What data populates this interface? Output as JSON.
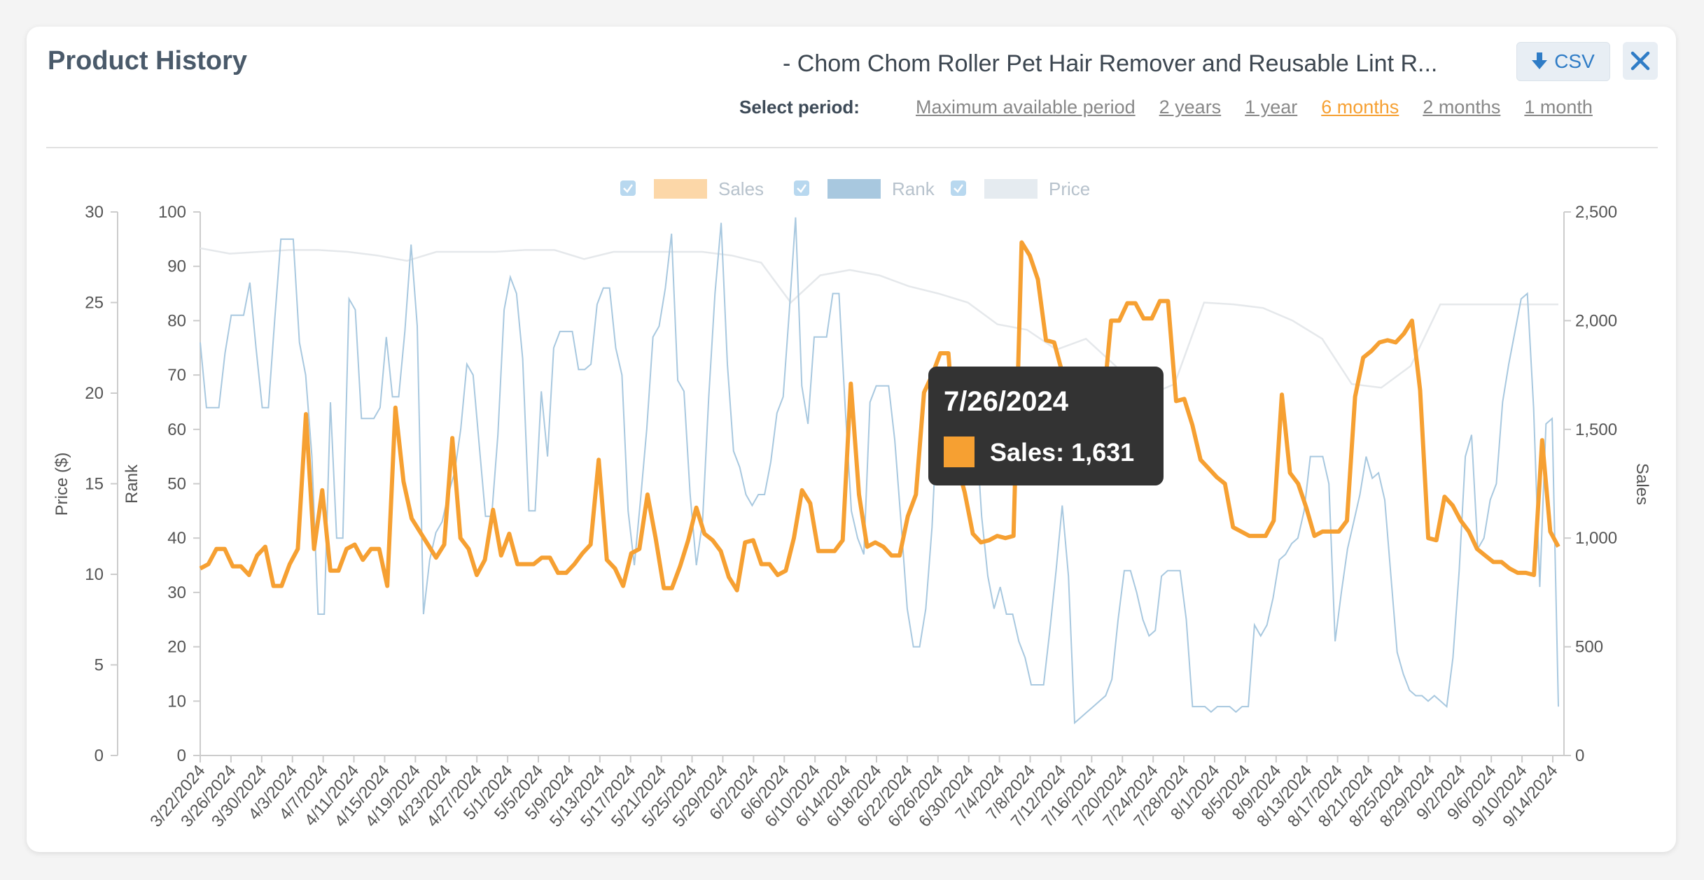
{
  "header": {
    "title": "Product History",
    "product_name": "- Chom Chom Roller Pet Hair Remover and Reusable Lint R...",
    "csv_label": "CSV",
    "close_icon": "close-icon",
    "download_icon": "download-arrow-icon"
  },
  "period": {
    "label": "Select period:",
    "options": [
      "Maximum available period",
      "2 years",
      "1 year",
      "6 months",
      "2 months",
      "1 month"
    ],
    "active": "6 months"
  },
  "colors": {
    "sales": "#f6a032",
    "rank": "#a8c8df",
    "price": "#e5e8eb",
    "accent": "#2f7cc6"
  },
  "tooltip": {
    "date": "7/26/2024",
    "label": "Sales: 1,631"
  },
  "chart_data": {
    "type": "line",
    "legend": [
      "Sales",
      "Rank",
      "Price"
    ],
    "legend_position": "top-center",
    "grid": false,
    "x_labels": [
      "3/22/2024",
      "3/26/2024",
      "3/30/2024",
      "4/3/2024",
      "4/7/2024",
      "4/11/2024",
      "4/15/2024",
      "4/19/2024",
      "4/23/2024",
      "4/27/2024",
      "5/1/2024",
      "5/5/2024",
      "5/9/2024",
      "5/13/2024",
      "5/17/2024",
      "5/21/2024",
      "5/25/2024",
      "5/29/2024",
      "6/2/2024",
      "6/6/2024",
      "6/10/2024",
      "6/14/2024",
      "6/18/2024",
      "6/22/2024",
      "6/26/2024",
      "6/30/2024",
      "7/4/2024",
      "7/8/2024",
      "7/12/2024",
      "7/16/2024",
      "7/20/2024",
      "7/24/2024",
      "7/28/2024",
      "8/1/2024",
      "8/5/2024",
      "8/9/2024",
      "8/13/2024",
      "8/17/2024",
      "8/21/2024",
      "8/25/2024",
      "8/29/2024",
      "9/2/2024",
      "9/6/2024",
      "9/10/2024",
      "9/14/2024"
    ],
    "axes": {
      "price": {
        "title": "Price ($)",
        "range": [
          0,
          30
        ],
        "ticks": [
          "0",
          "5",
          "10",
          "15",
          "20",
          "25",
          "30"
        ]
      },
      "rank": {
        "title": "Rank",
        "range": [
          0,
          100
        ],
        "ticks": [
          "0",
          "10",
          "20",
          "30",
          "40",
          "50",
          "60",
          "70",
          "80",
          "90",
          "100"
        ]
      },
      "sales": {
        "title": "Sales",
        "range": [
          0,
          2500
        ],
        "ticks": [
          "0",
          "500",
          "1,000",
          "1,500",
          "2,000",
          "2,500"
        ]
      }
    },
    "series": [
      {
        "name": "Sales",
        "axis": "sales",
        "values": [
          860,
          880,
          950,
          950,
          870,
          870,
          830,
          920,
          960,
          780,
          780,
          880,
          950,
          1570,
          950,
          1220,
          850,
          850,
          950,
          970,
          900,
          950,
          950,
          780,
          1600,
          1260,
          1090,
          1030,
          970,
          910,
          970,
          1460,
          1000,
          950,
          830,
          900,
          1130,
          920,
          1020,
          880,
          880,
          880,
          910,
          910,
          840,
          840,
          880,
          930,
          970,
          1360,
          900,
          860,
          780,
          930,
          950,
          1200,
          1000,
          770,
          770,
          870,
          990,
          1140,
          1020,
          990,
          940,
          820,
          760,
          980,
          990,
          880,
          880,
          830,
          850,
          1000,
          1220,
          1160,
          940,
          940,
          940,
          990,
          1710,
          1200,
          960,
          980,
          960,
          920,
          920,
          1100,
          1200,
          1670,
          1750,
          1850,
          1850,
          1350,
          1210,
          1020,
          980,
          990,
          1010,
          1000,
          1010,
          2360,
          2300,
          2190,
          1910,
          1900,
          1760,
          1650,
          1620,
          1640,
          1560,
          1600,
          2000,
          2000,
          2080,
          2080,
          2010,
          2010,
          2090,
          2090,
          1630,
          1640,
          1520,
          1360,
          1320,
          1280,
          1250,
          1050,
          1030,
          1010,
          1010,
          1010,
          1080,
          1660,
          1300,
          1250,
          1140,
          1010,
          1030,
          1030,
          1030,
          1080,
          1650,
          1830,
          1860,
          1900,
          1910,
          1900,
          1940,
          2000,
          1680,
          1000,
          990,
          1190,
          1150,
          1080,
          1030,
          950,
          920,
          890,
          890,
          860,
          840,
          840,
          830,
          1450,
          1030,
          960
        ]
      },
      {
        "name": "Rank",
        "axis": "rank",
        "values": [
          76,
          64,
          64,
          64,
          74,
          81,
          81,
          81,
          87,
          75,
          64,
          64,
          80,
          95,
          95,
          95,
          76,
          70,
          55,
          26,
          26,
          65,
          40,
          40,
          84,
          82,
          62,
          62,
          62,
          64,
          77,
          66,
          66,
          78,
          94,
          79,
          26,
          36,
          41,
          43,
          48,
          52,
          60,
          72,
          70,
          57,
          44,
          44,
          59,
          82,
          88,
          85,
          73,
          45,
          45,
          67,
          55,
          75,
          78,
          78,
          78,
          71,
          71,
          72,
          83,
          86,
          86,
          75,
          70,
          45,
          35,
          47,
          60,
          77,
          79,
          86,
          96,
          69,
          67,
          48,
          35,
          43,
          66,
          85,
          98,
          72,
          56,
          53,
          48,
          46,
          48,
          48,
          54,
          63,
          66,
          82,
          99,
          68,
          61,
          77,
          77,
          77,
          85,
          85,
          64,
          45,
          40,
          37,
          65,
          68,
          68,
          68,
          58,
          43,
          27,
          20,
          20,
          27,
          42,
          66,
          66,
          57,
          60,
          68,
          68,
          62,
          44,
          33,
          27,
          31,
          26,
          26,
          21,
          18,
          13,
          13,
          13,
          23,
          34,
          46,
          33,
          6,
          7,
          8,
          9,
          10,
          11,
          14,
          25,
          34,
          34,
          30,
          25,
          22,
          23,
          33,
          34,
          34,
          34,
          25,
          9,
          9,
          9,
          8,
          9,
          9,
          9,
          8,
          9,
          9,
          24,
          22,
          24,
          29,
          36,
          37,
          39,
          40,
          45,
          55,
          55,
          55,
          50,
          21,
          30,
          38,
          43,
          48,
          55,
          51,
          52,
          47,
          33,
          19,
          15,
          12,
          11,
          11,
          10,
          11,
          10,
          9,
          18,
          34,
          55,
          59,
          38,
          40,
          47,
          50,
          65,
          72,
          78,
          84,
          85,
          64,
          31,
          61,
          62,
          9
        ]
      },
      {
        "name": "Price",
        "axis": "price",
        "values": [
          28,
          27.7,
          27.8,
          27.9,
          27.9,
          27.8,
          27.6,
          27.3,
          27.8,
          27.8,
          27.8,
          27.9,
          27.9,
          27.4,
          27.8,
          27.8,
          27.8,
          27.8,
          27.6,
          27.2,
          25.0,
          26.5,
          26.8,
          26.5,
          25.9,
          25.5,
          25.0,
          23.8,
          23.5,
          22.4,
          23.0,
          21.5,
          19.8,
          20.5,
          25.0,
          24.9,
          24.7,
          24.0,
          23.0,
          20.5,
          20.3,
          21.5,
          24.9,
          24.9,
          24.9,
          24.9,
          24.9
        ]
      }
    ]
  }
}
